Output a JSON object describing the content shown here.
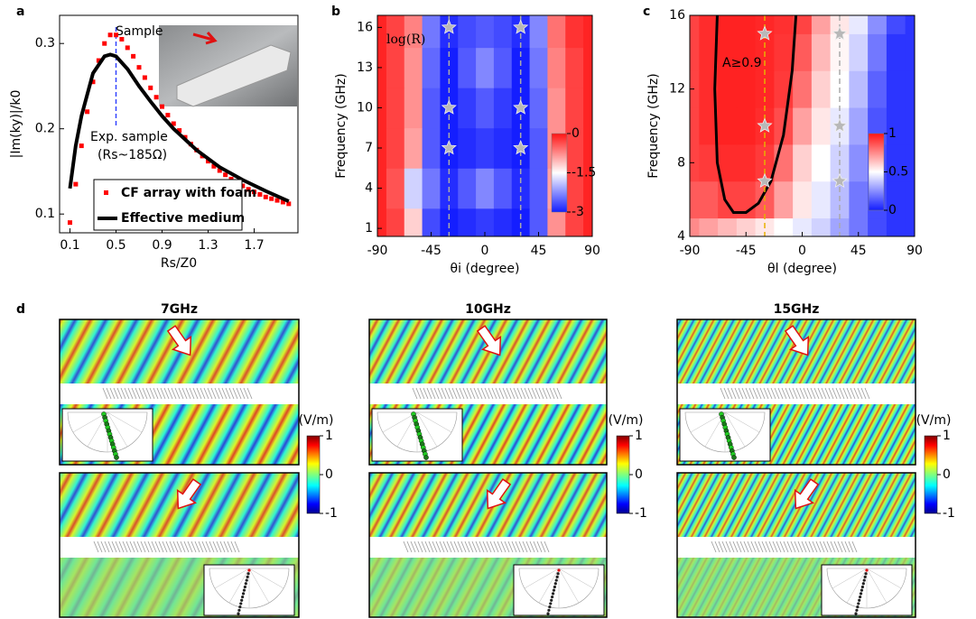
{
  "chart_data": [
    {
      "type": "scatter-line",
      "panel": "a",
      "xlabel": "Rs/Z0",
      "ylabel": "|Im(ky)|/k0",
      "xlim": [
        0.01,
        2.08
      ],
      "ylim": [
        0.078,
        0.333
      ],
      "xticks": [
        0.1,
        0.5,
        0.9,
        1.3,
        1.7
      ],
      "yticks": [
        0.1,
        0.2,
        0.3
      ],
      "series": [
        {
          "name": "CF array with foam",
          "color": "#ff0000",
          "marker": "square",
          "x": [
            0.1,
            0.15,
            0.2,
            0.25,
            0.3,
            0.35,
            0.4,
            0.45,
            0.5,
            0.55,
            0.6,
            0.65,
            0.7,
            0.75,
            0.8,
            0.85,
            0.9,
            0.95,
            1.0,
            1.05,
            1.1,
            1.15,
            1.2,
            1.25,
            1.3,
            1.35,
            1.4,
            1.45,
            1.5,
            1.55,
            1.6,
            1.65,
            1.7,
            1.75,
            1.8,
            1.85,
            1.9,
            1.95,
            2.0
          ],
          "values": [
            0.09,
            0.135,
            0.18,
            0.22,
            0.255,
            0.28,
            0.3,
            0.31,
            0.31,
            0.305,
            0.295,
            0.285,
            0.272,
            0.26,
            0.248,
            0.237,
            0.226,
            0.216,
            0.206,
            0.198,
            0.19,
            0.182,
            0.175,
            0.168,
            0.162,
            0.156,
            0.151,
            0.146,
            0.141,
            0.137,
            0.133,
            0.129,
            0.126,
            0.123,
            0.12,
            0.118,
            0.116,
            0.114,
            0.112
          ]
        },
        {
          "name": "Effective medium",
          "color": "#000000",
          "marker": "line",
          "x": [
            0.1,
            0.15,
            0.2,
            0.3,
            0.4,
            0.45,
            0.5,
            0.6,
            0.7,
            0.8,
            0.9,
            1.0,
            1.2,
            1.4,
            1.6,
            1.8,
            2.0
          ],
          "values": [
            0.13,
            0.18,
            0.215,
            0.265,
            0.285,
            0.287,
            0.285,
            0.27,
            0.25,
            0.232,
            0.215,
            0.2,
            0.175,
            0.155,
            0.14,
            0.127,
            0.115
          ]
        }
      ],
      "annotations": [
        "Sample",
        "Exp. sample",
        "(Rs~185Ω)"
      ],
      "marker_x": 0.5,
      "marker_color": "#3344ff",
      "legend": "lower right"
    },
    {
      "type": "heatmap",
      "panel": "b",
      "title": "log(R)",
      "xlabel": "θi (degree)",
      "ylabel": "Frequency (GHz)",
      "xlim": [
        -90,
        90
      ],
      "ylim": [
        0.4,
        16.9
      ],
      "xticks": [
        -90,
        -45,
        0,
        45,
        90
      ],
      "yticks": [
        1,
        4,
        7,
        10,
        13,
        16
      ],
      "x": [
        -90,
        -75,
        -60,
        -45,
        -30,
        -15,
        0,
        15,
        30,
        45,
        60,
        75,
        90
      ],
      "y": [
        1,
        4,
        7,
        10,
        13,
        16
      ],
      "z": [
        [
          -0.1,
          -0.3,
          -1.2,
          -2.7,
          -3,
          -2.9,
          -2.8,
          -2.9,
          -3,
          -2.6,
          -0.8,
          -0.3,
          -0.1
        ],
        [
          -0.1,
          -0.4,
          -1.8,
          -2.4,
          -2.9,
          -2.6,
          -2.3,
          -2.6,
          -2.9,
          -2.6,
          -0.9,
          -0.3,
          -0.1
        ],
        [
          -0.1,
          -0.3,
          -0.9,
          -2.6,
          -3,
          -2.9,
          -2.8,
          -2.9,
          -3,
          -2.6,
          -0.8,
          -0.3,
          -0.1
        ],
        [
          -0.1,
          -0.3,
          -0.8,
          -2.6,
          -3,
          -2.8,
          -2.6,
          -2.8,
          -3,
          -2.5,
          -0.8,
          -0.3,
          -0.1
        ],
        [
          -0.1,
          -0.3,
          -0.8,
          -2.5,
          -3,
          -2.6,
          -2.3,
          -2.6,
          -3,
          -2.4,
          -0.7,
          -0.3,
          -0.1
        ],
        [
          -0.1,
          -0.3,
          -0.7,
          -2.4,
          -2.9,
          -2.7,
          -2.6,
          -2.7,
          -2.9,
          -2.3,
          -0.6,
          -0.2,
          -0.1
        ]
      ],
      "clim": [
        -3,
        0
      ],
      "cticks": [
        0,
        -1.5,
        -3
      ],
      "dashed_x": [
        -30,
        30
      ],
      "dashed_colors": [
        "#aaaaaa",
        "#aaaaaa"
      ],
      "stars": {
        "x": [
          -30,
          -30,
          -30,
          30,
          30,
          30
        ],
        "y": [
          16,
          10,
          7,
          16,
          10,
          7
        ]
      }
    },
    {
      "type": "heatmap",
      "panel": "c",
      "title": "A≥0.9",
      "xlabel": "θl (degree)",
      "ylabel": "Frequency (GHz)",
      "xlim": [
        -90,
        90
      ],
      "ylim": [
        4,
        16
      ],
      "xticks": [
        -90,
        -45,
        0,
        45,
        90
      ],
      "yticks": [
        4,
        8,
        12,
        16
      ],
      "x": [
        -90,
        -75,
        -60,
        -45,
        -30,
        -15,
        0,
        15,
        30,
        45,
        60,
        75,
        90
      ],
      "y": [
        4,
        6,
        8,
        10,
        12,
        14,
        16
      ],
      "z": [
        [
          0.75,
          0.7,
          0.65,
          0.6,
          0.55,
          0.5,
          0.45,
          0.4,
          0.3,
          0.2,
          0.1,
          0.05,
          0.05
        ],
        [
          0.85,
          0.85,
          0.9,
          0.9,
          0.85,
          0.7,
          0.55,
          0.45,
          0.35,
          0.2,
          0.1,
          0.05,
          0.05
        ],
        [
          0.9,
          0.92,
          0.95,
          0.95,
          0.92,
          0.8,
          0.6,
          0.5,
          0.4,
          0.25,
          0.1,
          0.05,
          0.05
        ],
        [
          0.9,
          0.95,
          0.97,
          0.97,
          0.95,
          0.88,
          0.7,
          0.55,
          0.45,
          0.3,
          0.12,
          0.05,
          0.05
        ],
        [
          0.9,
          0.95,
          0.97,
          0.97,
          0.96,
          0.92,
          0.8,
          0.6,
          0.5,
          0.35,
          0.15,
          0.05,
          0.05
        ],
        [
          0.9,
          0.95,
          0.97,
          0.97,
          0.96,
          0.93,
          0.85,
          0.65,
          0.52,
          0.4,
          0.2,
          0.05,
          0.05
        ],
        [
          0.9,
          0.95,
          0.97,
          0.97,
          0.96,
          0.94,
          0.9,
          0.7,
          0.55,
          0.45,
          0.25,
          0.1,
          0.05
        ]
      ],
      "clim": [
        0,
        1
      ],
      "cticks": [
        1,
        0.5,
        0
      ],
      "dashed_x": [
        -30,
        30
      ],
      "dashed_colors": [
        "#e8b000",
        "#aaaaaa"
      ],
      "stars": {
        "x": [
          -30,
          -30,
          -30,
          30,
          30,
          30
        ],
        "y": [
          15,
          10,
          7,
          15,
          10,
          7
        ]
      },
      "contour": {
        "color": "#000000",
        "x": [
          -68,
          -70,
          -68,
          -62,
          -55,
          -45,
          -35,
          -25,
          -15,
          -8,
          -5
        ],
        "values": [
          16,
          12,
          8,
          6,
          5.3,
          5.3,
          5.8,
          7,
          9.5,
          13,
          16
        ]
      }
    },
    {
      "type": "field-maps",
      "panel": "d",
      "titles": [
        "7GHz",
        "10GHz",
        "15GHz"
      ],
      "colorbar_label": "(V/m)",
      "clim": [
        -1,
        1
      ],
      "cticks": [
        1,
        0,
        -1
      ]
    }
  ]
}
